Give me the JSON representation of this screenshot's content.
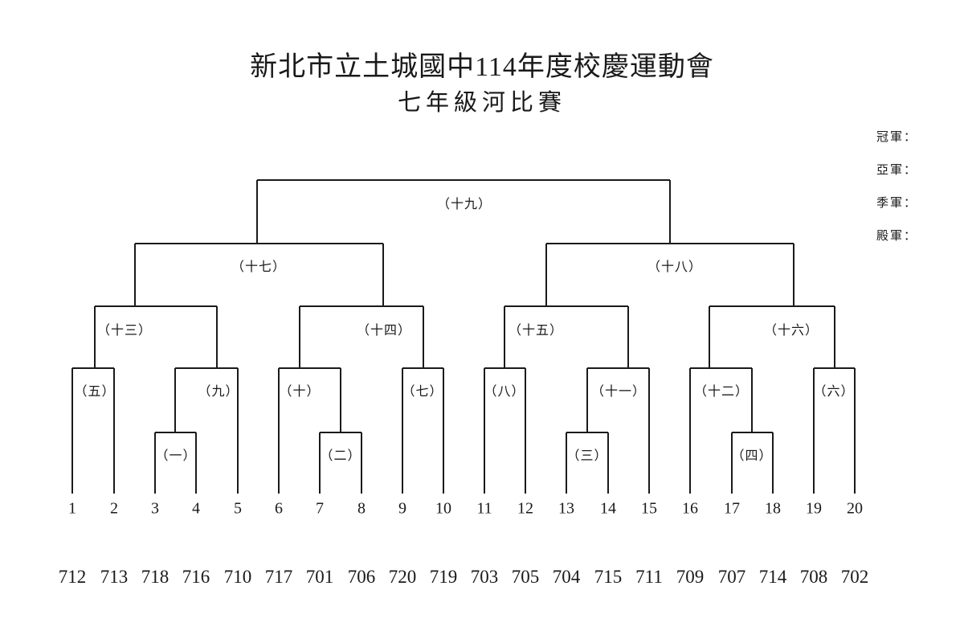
{
  "title": {
    "line1": "新北市立土城國中114年度校慶運動會",
    "line2": "七年級河比賽"
  },
  "results_panel": {
    "champion": "冠軍：",
    "runner_up": "亞軍：",
    "third": "季軍：",
    "fourth": "殿軍："
  },
  "colors": {
    "background": "#ffffff",
    "ink": "#1a1a1a",
    "line": "#1a1a1a"
  },
  "bracket": {
    "matches": {
      "m1": {
        "label": "（一）",
        "a": "3",
        "b": "4"
      },
      "m2": {
        "label": "（二）",
        "a": "7",
        "b": "8"
      },
      "m3": {
        "label": "（三）",
        "a": "13",
        "b": "14"
      },
      "m4": {
        "label": "（四）",
        "a": "17",
        "b": "18"
      },
      "m5": {
        "label": "（五）",
        "a": "1",
        "b": "2"
      },
      "m6": {
        "label": "（六）",
        "a": "19",
        "b": "20"
      },
      "m7": {
        "label": "（七）",
        "a": "9",
        "b": "10"
      },
      "m8": {
        "label": "（八）",
        "a": "11",
        "b": "12"
      },
      "m9": {
        "label": "（九）",
        "a": "winner-m1",
        "b": "5"
      },
      "m10": {
        "label": "（十）",
        "a": "6",
        "b": "winner-m2"
      },
      "m11": {
        "label": "（十一）",
        "a": "winner-m3",
        "b": "15"
      },
      "m12": {
        "label": "（十二）",
        "a": "16",
        "b": "winner-m4"
      },
      "m13": {
        "label": "（十三）",
        "a": "winner-m5",
        "b": "winner-m9"
      },
      "m14": {
        "label": "（十四）",
        "a": "winner-m10",
        "b": "winner-m7"
      },
      "m15": {
        "label": "（十五）",
        "a": "winner-m8",
        "b": "winner-m11"
      },
      "m16": {
        "label": "（十六）",
        "a": "winner-m12",
        "b": "winner-m6"
      },
      "m17": {
        "label": "（十七）",
        "a": "winner-m13",
        "b": "winner-m14"
      },
      "m18": {
        "label": "（十八）",
        "a": "winner-m15",
        "b": "winner-m16"
      },
      "m19": {
        "label": "（十九）",
        "a": "winner-m17",
        "b": "winner-m18"
      }
    }
  },
  "positions": [
    "1",
    "2",
    "3",
    "4",
    "5",
    "6",
    "7",
    "8",
    "9",
    "10",
    "11",
    "12",
    "13",
    "14",
    "15",
    "16",
    "17",
    "18",
    "19",
    "20"
  ],
  "classes": [
    "712",
    "713",
    "718",
    "716",
    "710",
    "717",
    "701",
    "706",
    "720",
    "719",
    "703",
    "705",
    "704",
    "715",
    "711",
    "709",
    "707",
    "714",
    "708",
    "702"
  ]
}
